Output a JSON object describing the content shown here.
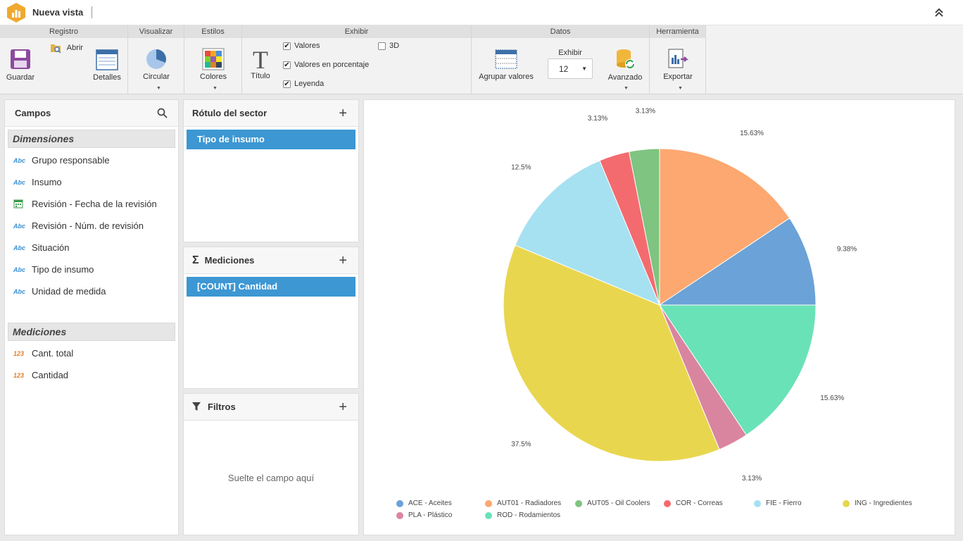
{
  "app": {
    "title": "Nueva vista"
  },
  "ribbon": {
    "groups": {
      "registro": "Registro",
      "visualizar": "Visualizar",
      "estilos": "Estilos",
      "exhibir": "Exhibir",
      "datos": "Datos",
      "herramienta": "Herramienta"
    },
    "guardar": "Guardar",
    "abrir": "Abrir",
    "detalles": "Detalles",
    "circular": "Circular",
    "colores": "Colores",
    "titulo": "Título",
    "checks": [
      {
        "label": "Valores",
        "checked": true
      },
      {
        "label": "Valores en porcentaje",
        "checked": true
      },
      {
        "label": "Leyenda",
        "checked": true
      },
      {
        "label": "3D",
        "checked": false
      }
    ],
    "agrupar": "Agrupar valores",
    "exhibir_label": "Exhibir",
    "exhibir_value": "12",
    "avanzado": "Avanzado",
    "exportar": "Exportar"
  },
  "campos": {
    "title": "Campos",
    "dimensiones_title": "Dimensiones",
    "dimensiones": [
      {
        "icon": "Abc",
        "label": "Grupo responsable"
      },
      {
        "icon": "Abc",
        "label": "Insumo"
      },
      {
        "icon": "calendar",
        "label": "Revisión - Fecha de la revisión"
      },
      {
        "icon": "Abc",
        "label": "Revisión - Núm. de revisión"
      },
      {
        "icon": "Abc",
        "label": "Situación"
      },
      {
        "icon": "Abc",
        "label": "Tipo de insumo"
      },
      {
        "icon": "Abc",
        "label": "Unidad de medida"
      }
    ],
    "mediciones_title": "Mediciones",
    "mediciones": [
      {
        "icon": "123",
        "label": "Cant. total"
      },
      {
        "icon": "123",
        "label": "Cantidad"
      }
    ]
  },
  "rotulo": {
    "title": "Rótulo del sector",
    "chip": "Tipo de insumo"
  },
  "mediciones_panel": {
    "title": "Mediciones",
    "chip": "[COUNT] Cantidad"
  },
  "filtros": {
    "title": "Filtros",
    "placeholder": "Suelte el campo aquí"
  },
  "chart_data": {
    "type": "pie",
    "slices": [
      {
        "name": "AUT01 - Radiadores",
        "value": 15.63,
        "label": "15.63%",
        "color": "#fca870"
      },
      {
        "name": "ACE - Aceites",
        "value": 9.38,
        "label": "9.38%",
        "color": "#6ba2d7"
      },
      {
        "name": "ROD - Rodamientos",
        "value": 15.63,
        "label": "15.63%",
        "color": "#6ae2b8"
      },
      {
        "name": "PLA - Plástico",
        "value": 3.13,
        "label": "3.13%",
        "color": "#d985a0"
      },
      {
        "name": "ING - Ingredientes",
        "value": 37.5,
        "label": "37.5%",
        "color": "#e9d64f"
      },
      {
        "name": "FIE - Fierro",
        "value": 12.5,
        "label": "12.5%",
        "color": "#a6e1f1"
      },
      {
        "name": "COR - Correas",
        "value": 3.13,
        "label": "3.13%",
        "color": "#f46b6f"
      },
      {
        "name": "AUT05 - Oil Coolers",
        "value": 3.13,
        "label": "3.13%",
        "color": "#7fc481"
      }
    ],
    "legend": [
      "ACE - Aceites",
      "AUT01 - Radiadores",
      "AUT05 - Oil Coolers",
      "COR - Correas",
      "FIE - Fierro",
      "ING - Ingredientes",
      "PLA - Plástico",
      "ROD - Rodamientos"
    ],
    "legend_placement": "bottom"
  }
}
